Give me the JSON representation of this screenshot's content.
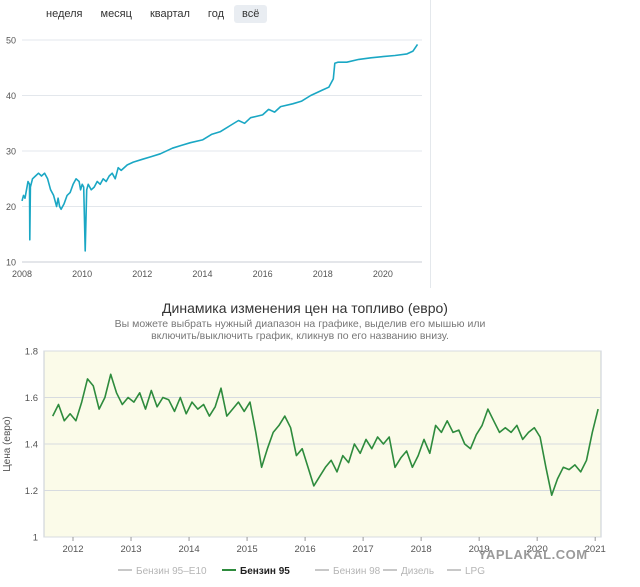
{
  "range_buttons": [
    "неделя",
    "месяц",
    "квартал",
    "год",
    "всё"
  ],
  "range_selected": "всё",
  "chart_data": [
    {
      "type": "line",
      "title": "",
      "xlabel": "",
      "ylabel": "",
      "xlim": [
        2008,
        2021.3
      ],
      "ylim": [
        10,
        50
      ],
      "x_ticks": [
        "2008",
        "2010",
        "2012",
        "2014",
        "2016",
        "2018",
        "2020"
      ],
      "y_ticks": [
        "10",
        "20",
        "30",
        "40",
        "50"
      ],
      "grid": "horizontal",
      "color": "#1aa7c4",
      "series": [
        {
          "x": [
            2008.0,
            2008.05,
            2008.1,
            2008.15,
            2008.2,
            2008.25,
            2008.26,
            2008.28,
            2008.35,
            2008.45,
            2008.55,
            2008.65,
            2008.75,
            2008.85,
            2008.95,
            2009.05,
            2009.15,
            2009.2,
            2009.25,
            2009.3,
            2009.4,
            2009.5,
            2009.6,
            2009.7,
            2009.8,
            2009.9,
            2009.95,
            2010.0,
            2010.05,
            2010.1,
            2010.15,
            2010.2,
            2010.3,
            2010.4,
            2010.5,
            2010.6,
            2010.7,
            2010.8,
            2010.9,
            2011.0,
            2011.1,
            2011.2,
            2011.3,
            2011.5,
            2011.7,
            2012.0,
            2012.3,
            2012.6,
            2013.0,
            2013.3,
            2013.6,
            2014.0,
            2014.3,
            2014.6,
            2014.9,
            2015.2,
            2015.4,
            2015.6,
            2016.0,
            2016.2,
            2016.4,
            2016.6,
            2017.0,
            2017.3,
            2017.6,
            2018.0,
            2018.2,
            2018.35,
            2018.4,
            2018.5,
            2018.8,
            2019.2,
            2019.6,
            2020.0,
            2020.4,
            2020.8,
            2021.0,
            2021.15
          ],
          "y": [
            21.0,
            22.0,
            21.5,
            23.0,
            24.5,
            24.0,
            14.0,
            23.5,
            25.0,
            25.5,
            26.0,
            25.5,
            26.0,
            25.0,
            23.0,
            22.0,
            20.0,
            21.5,
            20.0,
            19.5,
            20.5,
            22.0,
            22.5,
            24.0,
            25.0,
            24.5,
            23.0,
            24.0,
            23.5,
            12.0,
            23.0,
            24.0,
            23.0,
            23.5,
            24.5,
            24.0,
            25.0,
            24.5,
            25.5,
            26.0,
            25.0,
            27.0,
            26.5,
            27.5,
            28.0,
            28.5,
            29.0,
            29.5,
            30.5,
            31.0,
            31.5,
            32.0,
            33.0,
            33.5,
            34.5,
            35.5,
            35.0,
            36.0,
            36.5,
            37.5,
            37.0,
            38.0,
            38.5,
            39.0,
            40.0,
            41.0,
            41.5,
            43.0,
            45.8,
            46.0,
            46.0,
            46.5,
            46.8,
            47.0,
            47.2,
            47.5,
            48.0,
            49.2
          ]
        }
      ]
    },
    {
      "type": "line",
      "title": "Динамика изменения цен на топливо (евро)",
      "subtitle": [
        "Вы можете выбрать нужный диапазон на графике, выделив его мышью или",
        "включить/выключить график, кликнув по его названию внизу."
      ],
      "xlabel": "",
      "ylabel": "Цена (евро)",
      "xlim": [
        2011.5,
        2021.1
      ],
      "ylim": [
        1.0,
        1.8
      ],
      "x_ticks": [
        "2012",
        "2013",
        "2014",
        "2015",
        "2016",
        "2017",
        "2018",
        "2019",
        "2020",
        "2021"
      ],
      "y_ticks": [
        "1",
        "1.2",
        "1.4",
        "1.6",
        "1.8"
      ],
      "grid": "horizontal",
      "legend_position": "bottom",
      "legend": [
        "Бензин 95–E10",
        "Бензин 95",
        "Бензин 98",
        "Дизель",
        "LPG"
      ],
      "legend_active": "Бензин 95",
      "series": [
        {
          "name": "Бензин 95",
          "color": "#2e8b3d",
          "x": [
            2011.65,
            2011.75,
            2011.85,
            2011.95,
            2012.05,
            2012.15,
            2012.25,
            2012.35,
            2012.45,
            2012.55,
            2012.65,
            2012.75,
            2012.85,
            2012.95,
            2013.05,
            2013.15,
            2013.25,
            2013.35,
            2013.45,
            2013.55,
            2013.65,
            2013.75,
            2013.85,
            2013.95,
            2014.05,
            2014.15,
            2014.25,
            2014.35,
            2014.45,
            2014.55,
            2014.65,
            2014.75,
            2014.85,
            2014.95,
            2015.05,
            2015.15,
            2015.25,
            2015.35,
            2015.45,
            2015.55,
            2015.65,
            2015.75,
            2015.85,
            2015.95,
            2016.05,
            2016.15,
            2016.25,
            2016.35,
            2016.45,
            2016.55,
            2016.65,
            2016.75,
            2016.85,
            2016.95,
            2017.05,
            2017.15,
            2017.25,
            2017.35,
            2017.45,
            2017.55,
            2017.65,
            2017.75,
            2017.85,
            2017.95,
            2018.05,
            2018.15,
            2018.25,
            2018.35,
            2018.45,
            2018.55,
            2018.65,
            2018.75,
            2018.85,
            2018.95,
            2019.05,
            2019.15,
            2019.25,
            2019.35,
            2019.45,
            2019.55,
            2019.65,
            2019.75,
            2019.85,
            2019.95,
            2020.05,
            2020.15,
            2020.25,
            2020.35,
            2020.45,
            2020.55,
            2020.65,
            2020.75,
            2020.85,
            2020.95,
            2021.05
          ],
          "y": [
            1.52,
            1.57,
            1.5,
            1.53,
            1.5,
            1.58,
            1.68,
            1.65,
            1.55,
            1.6,
            1.7,
            1.62,
            1.57,
            1.6,
            1.58,
            1.62,
            1.55,
            1.63,
            1.56,
            1.6,
            1.59,
            1.54,
            1.6,
            1.53,
            1.58,
            1.55,
            1.57,
            1.52,
            1.56,
            1.64,
            1.52,
            1.55,
            1.58,
            1.54,
            1.58,
            1.45,
            1.3,
            1.38,
            1.45,
            1.48,
            1.52,
            1.47,
            1.35,
            1.38,
            1.3,
            1.22,
            1.26,
            1.3,
            1.33,
            1.28,
            1.35,
            1.32,
            1.4,
            1.36,
            1.42,
            1.38,
            1.43,
            1.4,
            1.43,
            1.3,
            1.34,
            1.37,
            1.3,
            1.35,
            1.42,
            1.36,
            1.48,
            1.45,
            1.5,
            1.45,
            1.46,
            1.4,
            1.38,
            1.44,
            1.48,
            1.55,
            1.5,
            1.45,
            1.47,
            1.45,
            1.48,
            1.42,
            1.45,
            1.47,
            1.43,
            1.3,
            1.18,
            1.25,
            1.3,
            1.29,
            1.31,
            1.28,
            1.33,
            1.45,
            1.55
          ]
        }
      ]
    }
  ],
  "watermark": "YAPLAKAL.COM"
}
